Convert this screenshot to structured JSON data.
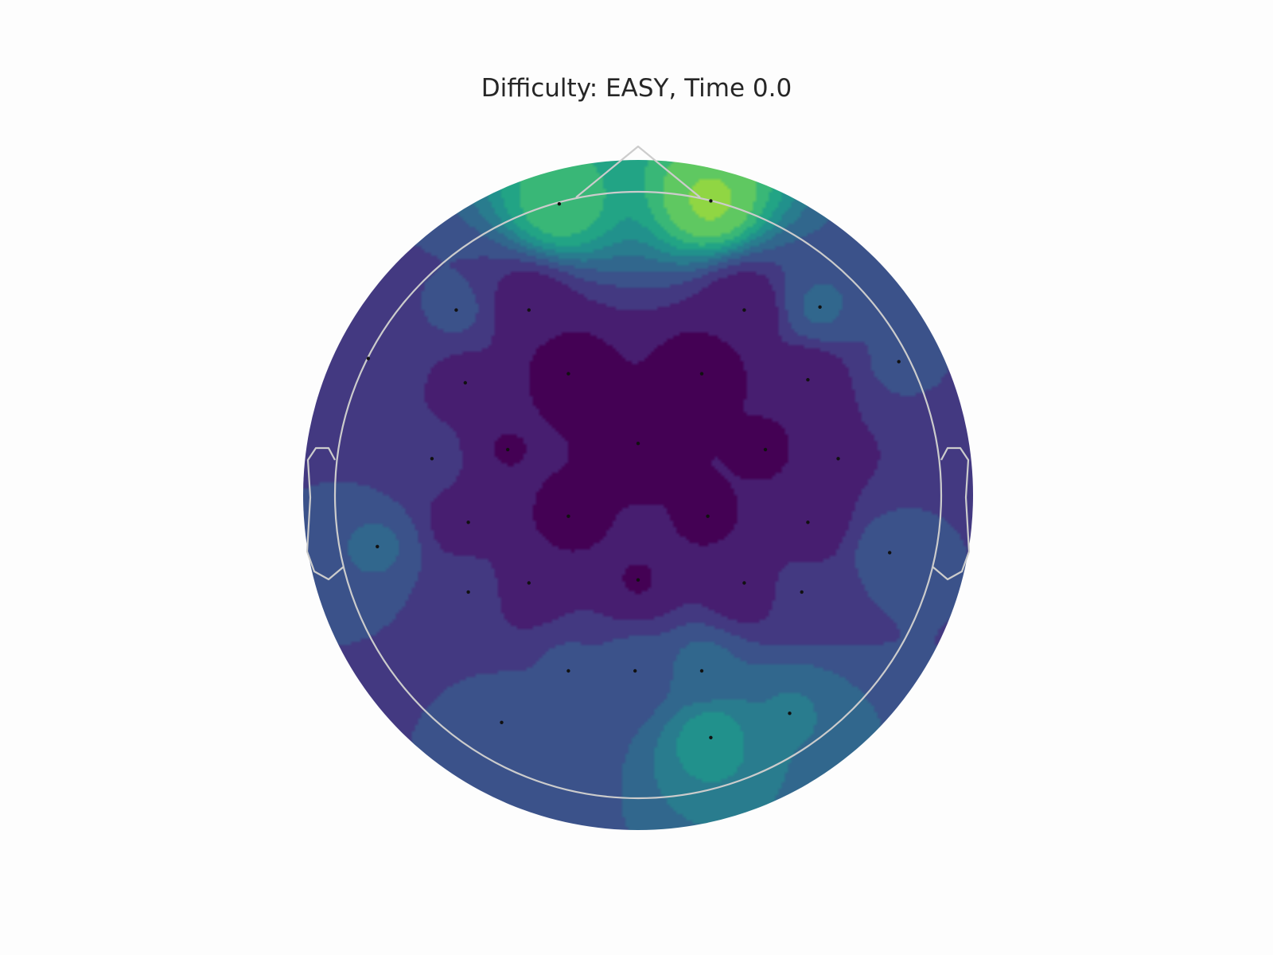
{
  "title": "Difficulty: EASY, Time 0.0",
  "chart_data": {
    "type": "heatmap",
    "subtype": "eeg-topomap",
    "title": "Difficulty: EASY, Time 0.0",
    "colormap": "viridis",
    "colorbar": false,
    "grid": false,
    "head_outline_color": "#cccccc",
    "sensor_marker_color": "#111111",
    "note": "Relative scalp field values (0 = lowest, 1 = highest); no colorbar or tick labels are printed.",
    "sensors": [
      {
        "x": -0.26,
        "y": 0.96,
        "value": 0.68
      },
      {
        "x": 0.24,
        "y": 0.97,
        "value": 0.8
      },
      {
        "x": -0.6,
        "y": 0.61,
        "value": 0.22
      },
      {
        "x": -0.36,
        "y": 0.61,
        "value": 0.05
      },
      {
        "x": 0.35,
        "y": 0.61,
        "value": 0.05
      },
      {
        "x": 0.6,
        "y": 0.62,
        "value": 0.3
      },
      {
        "x": -0.89,
        "y": 0.45,
        "value": 0.2
      },
      {
        "x": 0.86,
        "y": 0.44,
        "value": 0.22
      },
      {
        "x": -0.57,
        "y": 0.37,
        "value": 0.1
      },
      {
        "x": -0.23,
        "y": 0.4,
        "value": 0.0
      },
      {
        "x": 0.21,
        "y": 0.4,
        "value": 0.0
      },
      {
        "x": 0.56,
        "y": 0.38,
        "value": 0.05
      },
      {
        "x": -0.68,
        "y": 0.12,
        "value": 0.15
      },
      {
        "x": -0.43,
        "y": 0.15,
        "value": 0.04
      },
      {
        "x": 0.0,
        "y": 0.17,
        "value": 0.0
      },
      {
        "x": 0.42,
        "y": 0.15,
        "value": 0.03
      },
      {
        "x": 0.66,
        "y": 0.12,
        "value": 0.12
      },
      {
        "x": -0.56,
        "y": -0.09,
        "value": 0.08
      },
      {
        "x": -0.23,
        "y": -0.07,
        "value": 0.02
      },
      {
        "x": 0.23,
        "y": -0.07,
        "value": 0.03
      },
      {
        "x": 0.56,
        "y": -0.09,
        "value": 0.06
      },
      {
        "x": -0.86,
        "y": -0.17,
        "value": 0.3
      },
      {
        "x": 0.83,
        "y": -0.19,
        "value": 0.25
      },
      {
        "x": -0.56,
        "y": -0.32,
        "value": 0.18
      },
      {
        "x": -0.36,
        "y": -0.29,
        "value": 0.06
      },
      {
        "x": 0.0,
        "y": -0.28,
        "value": 0.04
      },
      {
        "x": 0.35,
        "y": -0.29,
        "value": 0.06
      },
      {
        "x": 0.54,
        "y": -0.32,
        "value": 0.16
      },
      {
        "x": -0.23,
        "y": -0.58,
        "value": 0.22
      },
      {
        "x": -0.01,
        "y": -0.58,
        "value": 0.24
      },
      {
        "x": 0.21,
        "y": -0.58,
        "value": 0.32
      },
      {
        "x": 0.24,
        "y": -0.8,
        "value": 0.5
      },
      {
        "x": -0.45,
        "y": -0.75,
        "value": 0.24
      },
      {
        "x": 0.5,
        "y": -0.72,
        "value": 0.38
      }
    ]
  }
}
